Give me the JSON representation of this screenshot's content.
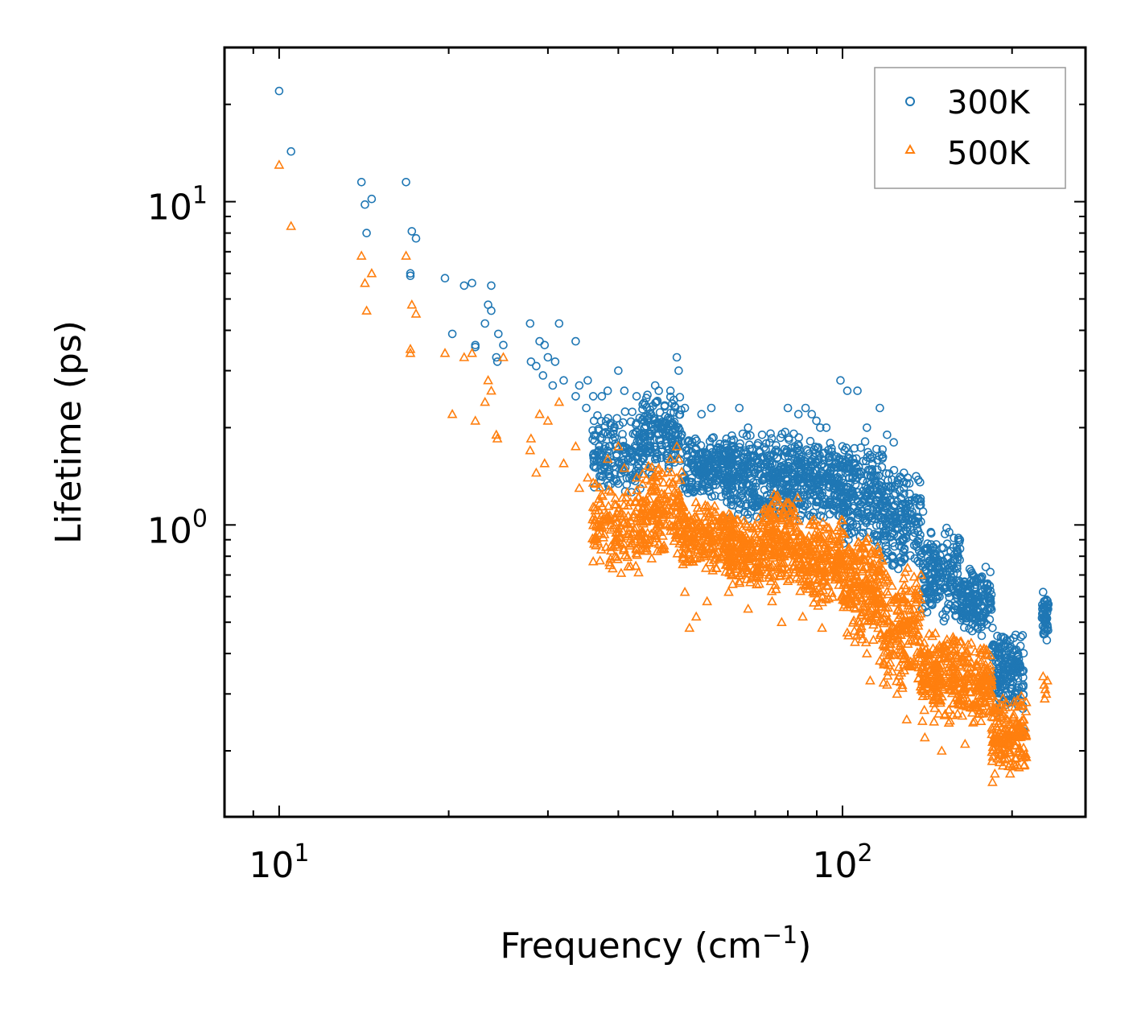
{
  "chart_data": {
    "type": "scatter",
    "title": "",
    "xlabel": "Frequency (cm",
    "xlabel_sup": "−1",
    "xlabel_close": ")",
    "ylabel": "Lifetime (ps)",
    "xscale": "log",
    "yscale": "log",
    "xlim": [
      8,
      270
    ],
    "ylim": [
      0.125,
      30
    ],
    "x_ticks": [
      {
        "value": 10,
        "base": "10",
        "exp": "1"
      },
      {
        "value": 100,
        "base": "10",
        "exp": "2"
      }
    ],
    "y_ticks": [
      {
        "value": 1,
        "base": "10",
        "exp": "0"
      },
      {
        "value": 10,
        "base": "10",
        "exp": "1"
      }
    ],
    "legend_position": "top-right",
    "series": [
      {
        "name": "300K",
        "marker": "circle",
        "color": "#1f77b4",
        "points": [
          [
            10.0,
            22.0
          ],
          [
            10.5,
            14.3
          ],
          [
            14.0,
            11.5
          ],
          [
            14.2,
            9.8
          ],
          [
            14.6,
            10.2
          ],
          [
            14.3,
            8.0
          ],
          [
            16.8,
            11.5
          ],
          [
            17.2,
            8.1
          ],
          [
            17.5,
            7.7
          ],
          [
            17.1,
            6.0
          ],
          [
            17.1,
            5.9
          ],
          [
            19.7,
            5.8
          ],
          [
            21.3,
            5.5
          ],
          [
            22.0,
            5.6
          ],
          [
            23.8,
            5.5
          ],
          [
            20.3,
            3.9
          ],
          [
            22.3,
            3.6
          ],
          [
            22.3,
            3.55
          ],
          [
            23.2,
            4.2
          ],
          [
            23.5,
            4.8
          ],
          [
            23.8,
            4.6
          ],
          [
            24.5,
            3.9
          ],
          [
            25.0,
            3.6
          ],
          [
            24.3,
            3.3
          ],
          [
            24.4,
            3.2
          ],
          [
            27.9,
            4.2
          ],
          [
            28.0,
            3.2
          ],
          [
            28.6,
            3.1
          ],
          [
            29.0,
            3.7
          ],
          [
            29.6,
            3.6
          ],
          [
            30.0,
            3.3
          ],
          [
            30.9,
            3.2
          ],
          [
            31.4,
            4.2
          ],
          [
            29.4,
            2.9
          ],
          [
            30.6,
            2.7
          ],
          [
            32.0,
            2.8
          ],
          [
            33.6,
            3.7
          ],
          [
            34.1,
            2.7
          ],
          [
            35.3,
            2.8
          ],
          [
            36.1,
            2.5
          ],
          [
            33.6,
            2.5
          ],
          [
            35.1,
            2.3
          ],
          [
            37.4,
            2.5
          ],
          [
            38.3,
            2.6
          ],
          [
            40.0,
            3.0
          ],
          [
            41.0,
            2.6
          ],
          [
            43.1,
            2.5
          ],
          [
            46.5,
            2.7
          ],
          [
            47.2,
            2.6
          ],
          [
            49.5,
            2.6
          ],
          [
            50.8,
            3.3
          ],
          [
            51.2,
            3.0
          ],
          [
            52.5,
            2.3
          ],
          [
            56.2,
            2.2
          ],
          [
            58.5,
            2.3
          ],
          [
            65.6,
            2.3
          ],
          [
            68.0,
            2.0
          ],
          [
            72.0,
            1.9
          ],
          [
            80.0,
            2.3
          ],
          [
            83.5,
            2.2
          ],
          [
            86.0,
            2.3
          ],
          [
            88.2,
            2.2
          ],
          [
            89.9,
            2.1
          ],
          [
            91.3,
            2.0
          ],
          [
            93.6,
            2.0
          ],
          [
            99.2,
            2.8
          ],
          [
            102.0,
            2.6
          ],
          [
            106.3,
            2.6
          ],
          [
            110.5,
            2.0
          ],
          [
            116.5,
            2.3
          ],
          [
            120.0,
            1.9
          ],
          [
            123.3,
            1.8
          ],
          [
            128.5,
            1.3
          ],
          [
            139.0,
            1.1
          ],
          [
            143.5,
            0.95
          ],
          [
            150.0,
            0.85
          ],
          [
            160.0,
            0.78
          ],
          [
            170.0,
            0.7
          ],
          [
            184.6,
            0.48
          ],
          [
            186.4,
            0.42
          ],
          [
            192.6,
            0.45
          ],
          [
            198.4,
            0.38
          ],
          [
            204.6,
            0.3
          ],
          [
            209.0,
            0.27
          ],
          [
            210.0,
            0.23
          ],
          [
            227.0,
            0.62
          ],
          [
            228.0,
            0.58
          ],
          [
            229.0,
            0.55
          ],
          [
            230.0,
            0.52
          ],
          [
            231.0,
            0.49
          ],
          [
            228.5,
            0.46
          ],
          [
            230.5,
            0.44
          ]
        ],
        "clusters": [
          {
            "x": [
              36,
              44
            ],
            "y": [
              1.2,
              2.3
            ],
            "n": 170
          },
          {
            "x": [
              44,
              52
            ],
            "y": [
              1.4,
              2.6
            ],
            "n": 180
          },
          {
            "x": [
              52,
              64
            ],
            "y": [
              1.2,
              1.9
            ],
            "n": 230
          },
          {
            "x": [
              62,
              72
            ],
            "y": [
              1.0,
              2.0
            ],
            "n": 190
          },
          {
            "x": [
              72,
              84
            ],
            "y": [
              1.0,
              2.0
            ],
            "n": 210
          },
          {
            "x": [
              84,
              100
            ],
            "y": [
              1.0,
              1.9
            ],
            "n": 230
          },
          {
            "x": [
              100,
              118
            ],
            "y": [
              0.8,
              1.9
            ],
            "n": 230
          },
          {
            "x": [
              118,
              138
            ],
            "y": [
              0.7,
              1.5
            ],
            "n": 200
          },
          {
            "x": [
              138,
              162
            ],
            "y": [
              0.5,
              1.0
            ],
            "n": 200
          },
          {
            "x": [
              162,
              184
            ],
            "y": [
              0.45,
              0.75
            ],
            "n": 180
          },
          {
            "x": [
              184,
              210
            ],
            "y": [
              0.25,
              0.48
            ],
            "n": 180
          },
          {
            "x": [
              226,
              232
            ],
            "y": [
              0.45,
              0.6
            ],
            "n": 40
          }
        ]
      },
      {
        "name": "500K",
        "marker": "triangle",
        "color": "#ff7f0e",
        "points": [
          [
            10.0,
            13.0
          ],
          [
            10.5,
            8.4
          ],
          [
            14.0,
            6.8
          ],
          [
            14.2,
            5.6
          ],
          [
            14.6,
            6.0
          ],
          [
            14.3,
            4.6
          ],
          [
            16.8,
            6.8
          ],
          [
            17.2,
            4.8
          ],
          [
            17.5,
            4.5
          ],
          [
            17.1,
            3.5
          ],
          [
            17.1,
            3.4
          ],
          [
            19.7,
            3.4
          ],
          [
            20.3,
            2.2
          ],
          [
            21.3,
            3.3
          ],
          [
            22.3,
            2.1
          ],
          [
            22.0,
            3.4
          ],
          [
            23.2,
            2.4
          ],
          [
            23.5,
            2.8
          ],
          [
            23.8,
            2.6
          ],
          [
            24.3,
            1.9
          ],
          [
            24.4,
            1.85
          ],
          [
            25.0,
            3.3
          ],
          [
            27.9,
            1.7
          ],
          [
            28.0,
            1.85
          ],
          [
            28.6,
            1.45
          ],
          [
            29.0,
            2.2
          ],
          [
            29.6,
            1.55
          ],
          [
            30.0,
            2.1
          ],
          [
            31.4,
            2.4
          ],
          [
            32.0,
            1.55
          ],
          [
            33.6,
            1.75
          ],
          [
            34.1,
            1.3
          ],
          [
            35.3,
            1.4
          ],
          [
            36.1,
            1.35
          ],
          [
            38.3,
            1.6
          ],
          [
            40.0,
            1.75
          ],
          [
            41.0,
            1.5
          ],
          [
            43.1,
            1.4
          ],
          [
            46.5,
            1.4
          ],
          [
            47.2,
            1.5
          ],
          [
            49.5,
            1.6
          ],
          [
            50.8,
            1.75
          ],
          [
            51.2,
            1.6
          ],
          [
            52.5,
            0.62
          ],
          [
            53.5,
            0.48
          ],
          [
            55.0,
            0.52
          ],
          [
            57.5,
            0.58
          ],
          [
            62.8,
            0.62
          ],
          [
            68.0,
            0.55
          ],
          [
            75.0,
            0.58
          ],
          [
            78.0,
            0.5
          ],
          [
            85.0,
            0.52
          ],
          [
            92.0,
            0.48
          ],
          [
            100.0,
            0.6
          ],
          [
            105.0,
            0.47
          ],
          [
            110.5,
            0.4
          ],
          [
            112.0,
            0.33
          ],
          [
            116.5,
            0.38
          ],
          [
            120.0,
            0.32
          ],
          [
            125.0,
            0.3
          ],
          [
            130.0,
            0.25
          ],
          [
            140.0,
            0.22
          ],
          [
            150.0,
            0.2
          ],
          [
            165.0,
            0.21
          ],
          [
            175.0,
            0.28
          ],
          [
            184.6,
            0.16
          ],
          [
            186.4,
            0.17
          ],
          [
            192.6,
            0.18
          ],
          [
            198.4,
            0.17
          ],
          [
            204.6,
            0.18
          ],
          [
            210.0,
            0.18
          ],
          [
            227.0,
            0.34
          ],
          [
            228.0,
            0.32
          ],
          [
            229.0,
            0.31
          ],
          [
            230.0,
            0.3
          ],
          [
            228.5,
            0.29
          ],
          [
            231.0,
            0.33
          ]
        ],
        "clusters": [
          {
            "x": [
              36,
              44
            ],
            "y": [
              0.7,
              1.35
            ],
            "n": 160
          },
          {
            "x": [
              44,
              52
            ],
            "y": [
              0.75,
              1.6
            ],
            "n": 180
          },
          {
            "x": [
              52,
              64
            ],
            "y": [
              0.7,
              1.2
            ],
            "n": 220
          },
          {
            "x": [
              62,
              72
            ],
            "y": [
              0.62,
              1.1
            ],
            "n": 180
          },
          {
            "x": [
              72,
              84
            ],
            "y": [
              0.6,
              1.3
            ],
            "n": 210
          },
          {
            "x": [
              84,
              100
            ],
            "y": [
              0.55,
              1.1
            ],
            "n": 220
          },
          {
            "x": [
              100,
              118
            ],
            "y": [
              0.42,
              1.0
            ],
            "n": 230
          },
          {
            "x": [
              118,
              138
            ],
            "y": [
              0.3,
              0.75
            ],
            "n": 200
          },
          {
            "x": [
              138,
              162
            ],
            "y": [
              0.24,
              0.48
            ],
            "n": 210
          },
          {
            "x": [
              162,
              184
            ],
            "y": [
              0.24,
              0.45
            ],
            "n": 160
          },
          {
            "x": [
              184,
              212
            ],
            "y": [
              0.17,
              0.3
            ],
            "n": 170
          }
        ]
      }
    ]
  }
}
